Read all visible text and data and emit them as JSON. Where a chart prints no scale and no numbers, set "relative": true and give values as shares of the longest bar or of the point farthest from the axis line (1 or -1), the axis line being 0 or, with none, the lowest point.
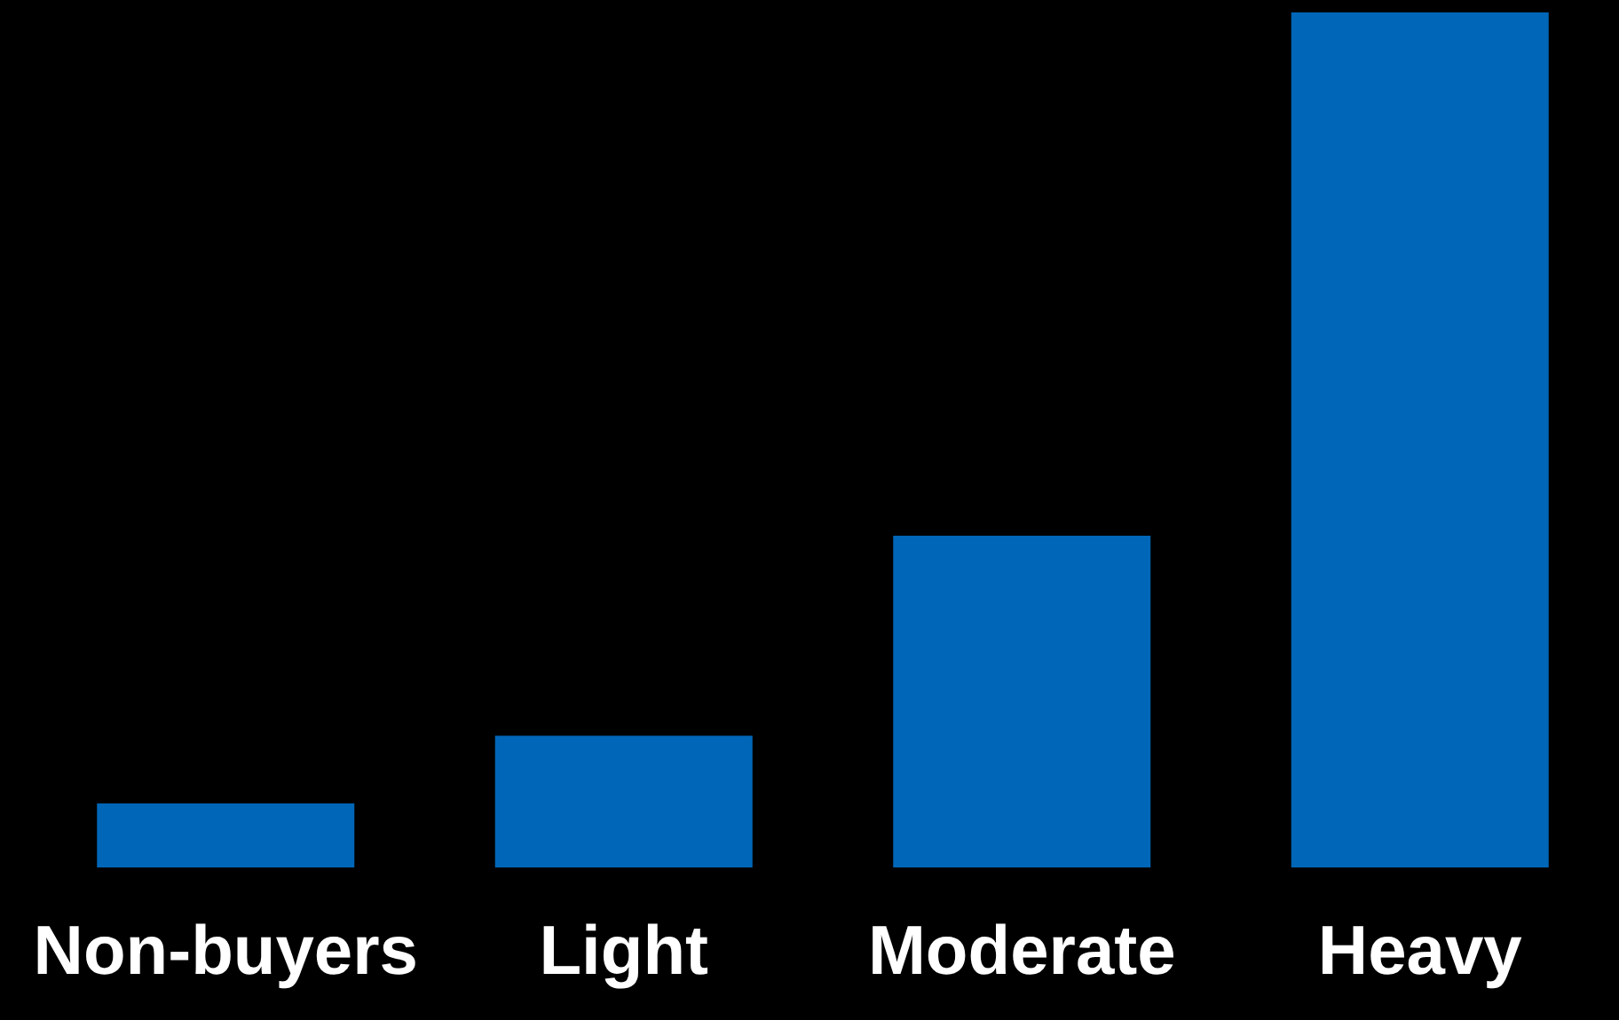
{
  "chart_data": {
    "type": "bar",
    "categories": [
      "Non-buyers",
      "Light",
      "Moderate",
      "Heavy"
    ],
    "values": [
      0.075,
      0.154,
      0.388,
      1
    ],
    "color": "#0066b8",
    "relative": true
  }
}
